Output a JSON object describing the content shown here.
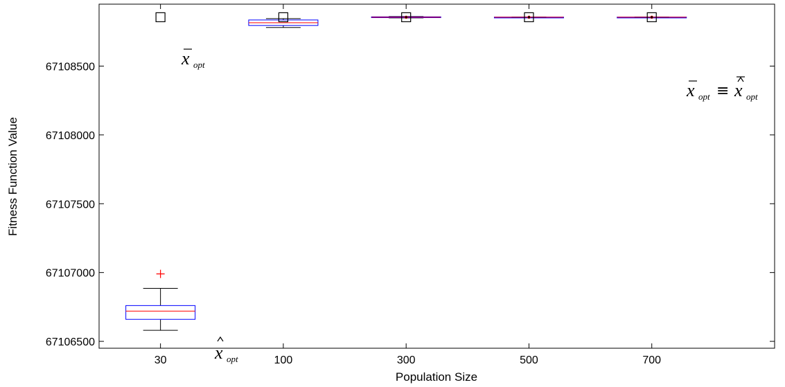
{
  "chart_data": {
    "type": "boxplot",
    "title": "",
    "xlabel": "Population Size",
    "ylabel": "Fitness Function Value",
    "ylim": [
      67106450,
      67108950
    ],
    "yticks": [
      67106500,
      67107000,
      67107500,
      67108000,
      67108500
    ],
    "categories": [
      "30",
      "100",
      "300",
      "500",
      "700"
    ],
    "grid": false,
    "boxes": [
      {
        "category": "30",
        "whisker_low": 67106580,
        "q1": 67106660,
        "median": 67106720,
        "q3": 67106760,
        "whisker_high": 67106885,
        "outliers": [
          67106990
        ],
        "mean_marker": 67108855
      },
      {
        "category": "100",
        "whisker_low": 67108780,
        "q1": 67108795,
        "median": 67108815,
        "q3": 67108835,
        "whisker_high": 67108845,
        "outliers": [],
        "mean_marker": 67108855
      },
      {
        "category": "300",
        "whisker_low": 67108850,
        "q1": 67108852,
        "median": 67108855,
        "q3": 67108858,
        "whisker_high": 67108860,
        "outliers": [
          67108855
        ],
        "mean_marker": 67108855
      },
      {
        "category": "500",
        "whisker_low": 67108853,
        "q1": 67108854,
        "median": 67108855,
        "q3": 67108856,
        "whisker_high": 67108857,
        "outliers": [
          67108855
        ],
        "mean_marker": 67108855
      },
      {
        "category": "700",
        "whisker_low": 67108853,
        "q1": 67108854,
        "median": 67108855,
        "q3": 67108856,
        "whisker_high": 67108857,
        "outliers": [
          67108855
        ],
        "mean_marker": 67108855
      }
    ],
    "colors": {
      "box": "#0000ff",
      "median": "#ff0000",
      "whisker": "#000000",
      "outlier": "#ff0000",
      "marker": "#000000"
    },
    "annotations": [
      {
        "id": "xbar-label",
        "base": "x",
        "accent": "bar",
        "sub": "opt"
      },
      {
        "id": "xhat-label",
        "base": "x",
        "accent": "hat",
        "sub": "opt"
      },
      {
        "id": "equiv-label",
        "left_base": "x",
        "left_accent": "bar",
        "left_sub": "opt",
        "relation": "≡",
        "right_base": "x",
        "right_accent": "hat",
        "right_sub": "opt"
      }
    ]
  }
}
